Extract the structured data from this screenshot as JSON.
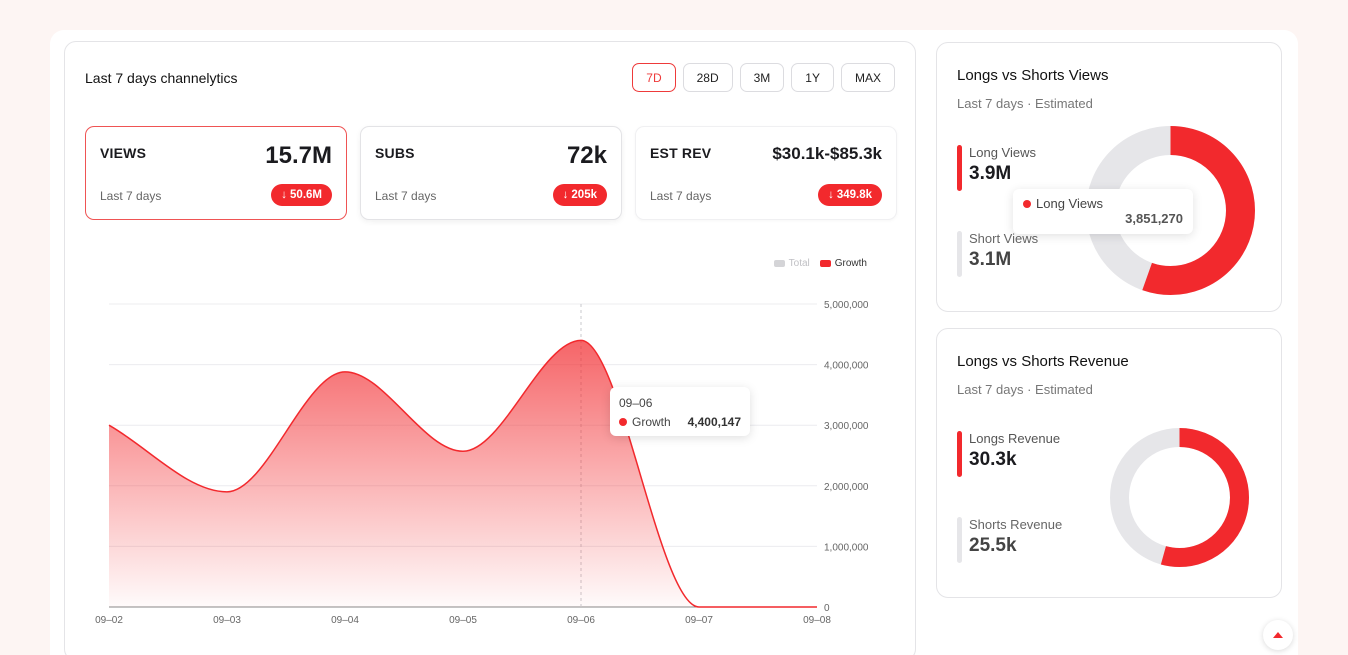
{
  "header": {
    "title": "Last 7 days channelytics"
  },
  "ranges": [
    {
      "label": "7D",
      "active": true
    },
    {
      "label": "28D",
      "active": false
    },
    {
      "label": "3M",
      "active": false
    },
    {
      "label": "1Y",
      "active": false
    },
    {
      "label": "MAX",
      "active": false
    }
  ],
  "stats": [
    {
      "label": "VIEWS",
      "value": "15.7M",
      "period": "Last 7 days",
      "change": "50.6M"
    },
    {
      "label": "SUBS",
      "value": "72k",
      "period": "Last 7 days",
      "change": "205k"
    },
    {
      "label": "EST REV",
      "value": "$30.1k-$85.3k",
      "period": "Last 7 days",
      "change": "349.8k"
    }
  ],
  "chart_data": {
    "type": "area",
    "x": [
      "09–02",
      "09–03",
      "09–04",
      "09–05",
      "09–06",
      "09–07",
      "09–08"
    ],
    "series": [
      {
        "name": "Growth",
        "color": "#f2292d",
        "values": [
          3000000,
          1900000,
          3880000,
          2570000,
          4400147,
          0,
          0
        ]
      }
    ],
    "legend": [
      {
        "name": "Total",
        "color": "#cfcfd3"
      },
      {
        "name": "Growth",
        "color": "#f2292d"
      }
    ],
    "yticks": [
      "5,000,000",
      "4,000,000",
      "3,000,000",
      "2,000,000",
      "1,000,000",
      "0"
    ],
    "ylim": [
      0,
      5000000
    ],
    "grid": true,
    "legend_position": "top-right",
    "tooltip": {
      "date": "09–06",
      "series": "Growth",
      "value": "4,400,147"
    }
  },
  "views_split": {
    "title": "Longs vs Shorts Views",
    "subtitle": "Last 7 days · Estimated",
    "long_label": "Long Views",
    "long_value": "3.9M",
    "long_exact": "3,851,270",
    "short_label": "Short Views",
    "short_value": "3.1M",
    "long_share": 0.554
  },
  "revenue_split": {
    "title": "Longs vs Shorts Revenue",
    "subtitle": "Last 7 days · Estimated",
    "long_label": "Longs Revenue",
    "long_value": "30.3k",
    "short_label": "Shorts Revenue",
    "short_value": "25.5k",
    "long_share": 0.543
  },
  "colors": {
    "accent": "#f2292d",
    "muted": "#e6e6e9"
  }
}
